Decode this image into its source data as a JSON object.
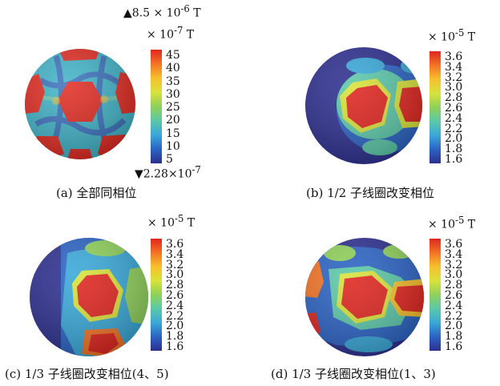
{
  "colormap": [
    "#2d2f8f",
    "#2b63c4",
    "#39a8d8",
    "#5bc8a8",
    "#8fd15a",
    "#d8e23a",
    "#f7c02a",
    "#f37324",
    "#e0251f"
  ],
  "panels": [
    {
      "id": "a",
      "unit_html": "× 10<sup>-7</sup> T",
      "max_html": "▲8.5 × 10<sup>-6</sup> T",
      "min_html": "▼2.28×10<sup>-7</sup>",
      "ticks": [
        "45",
        "40",
        "35",
        "30",
        "25",
        "20",
        "15",
        "10",
        "5"
      ],
      "caption": "(a) 全部同相位"
    },
    {
      "id": "b",
      "unit_html": "× 10<sup>-5</sup> T",
      "ticks": [
        "3.6",
        "3.4",
        "3.2",
        "3.0",
        "2.8",
        "2.6",
        "2.4",
        "2.2",
        "2.0",
        "1.8",
        "1.6"
      ],
      "caption": "(b) 1/2 子线圈改变相位"
    },
    {
      "id": "c",
      "unit_html": "× 10<sup>-5</sup> T",
      "ticks": [
        "3.6",
        "3.4",
        "3.2",
        "3.0",
        "2.8",
        "2.6",
        "2.4",
        "2.2",
        "2.0",
        "1.8",
        "1.6"
      ],
      "caption": "(c) 1/3 子线圈改变相位(4、5)"
    },
    {
      "id": "d",
      "unit_html": "× 10<sup>-5</sup> T",
      "ticks": [
        "3.6",
        "3.4",
        "3.2",
        "3.0",
        "2.8",
        "2.6",
        "2.4",
        "2.2",
        "2.0",
        "1.8",
        "1.6"
      ],
      "caption": "(d) 1/3 子线圈改变相位(1、3)"
    }
  ]
}
